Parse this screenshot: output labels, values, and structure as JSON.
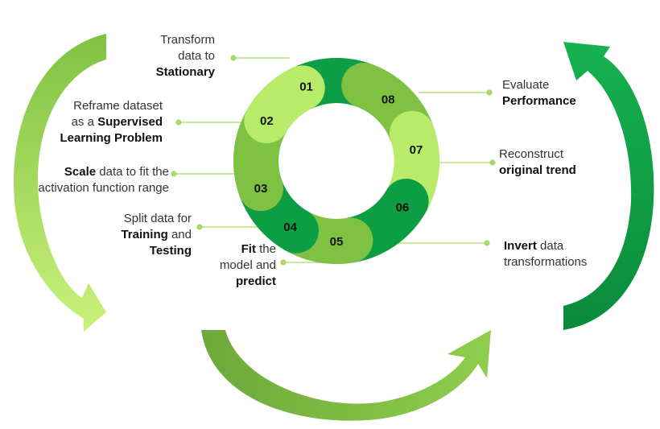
{
  "steps": [
    {
      "num": "01",
      "parts": [
        {
          "t": "Transform",
          "b": false
        },
        {
          "t": "data to",
          "b": false
        },
        {
          "t": "Stationary",
          "b": true
        }
      ]
    },
    {
      "num": "02",
      "lines": [
        [
          {
            "t": "Reframe dataset",
            "b": false
          }
        ],
        [
          {
            "t": "as a ",
            "b": false
          },
          {
            "t": "Supervised",
            "b": true
          }
        ],
        [
          {
            "t": "Learning Problem",
            "b": true
          }
        ]
      ]
    },
    {
      "num": "03",
      "lines": [
        [
          {
            "t": "Scale",
            "b": true
          },
          {
            "t": " data to fit the",
            "b": false
          }
        ],
        [
          {
            "t": "activation function range",
            "b": false
          }
        ]
      ]
    },
    {
      "num": "04",
      "lines": [
        [
          {
            "t": "Split data for",
            "b": false
          }
        ],
        [
          {
            "t": "Training",
            "b": true
          },
          {
            "t": " and",
            "b": false
          }
        ],
        [
          {
            "t": "Testing",
            "b": true
          }
        ]
      ]
    },
    {
      "num": "05",
      "lines": [
        [
          {
            "t": "Fit",
            "b": true
          },
          {
            "t": " the",
            "b": false
          }
        ],
        [
          {
            "t": "model and",
            "b": false
          }
        ],
        [
          {
            "t": "predict",
            "b": true
          }
        ]
      ]
    },
    {
      "num": "06",
      "lines": [
        [
          {
            "t": "Invert",
            "b": true
          },
          {
            "t": " data",
            "b": false
          }
        ],
        [
          {
            "t": "transformations",
            "b": false
          }
        ]
      ]
    },
    {
      "num": "07",
      "lines": [
        [
          {
            "t": "Reconstruct",
            "b": false
          }
        ],
        [
          {
            "t": "original trend",
            "b": true
          }
        ]
      ]
    },
    {
      "num": "08",
      "lines": [
        [
          {
            "t": "Evaluate",
            "b": false
          }
        ],
        [
          {
            "t": "Performance",
            "b": true
          }
        ]
      ]
    }
  ],
  "colors": {
    "dark_green": "#0d9d45",
    "mid_green": "#7fc241",
    "light_green": "#b8eb6a",
    "olive_green": "#76ad3e",
    "connector": "#a6d96a"
  }
}
